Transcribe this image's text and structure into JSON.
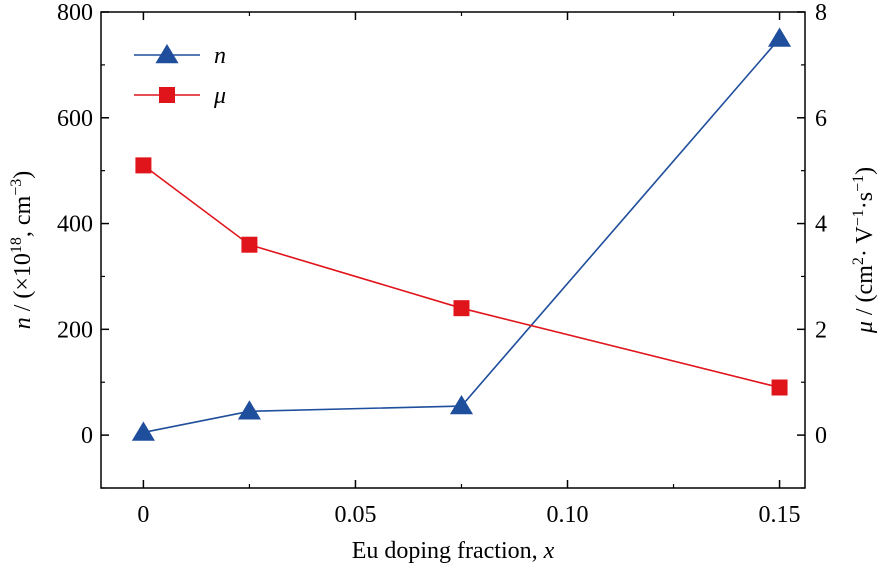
{
  "chart_data": {
    "type": "line",
    "x": [
      0,
      0.025,
      0.075,
      0.15
    ],
    "xlabel_text": "Eu doping fraction, ",
    "xlabel_var": "x",
    "xticks": [
      "0",
      "0.05",
      "0.10",
      "0.15"
    ],
    "xtick_values": [
      0,
      0.05,
      0.1,
      0.15
    ],
    "xlim": [
      -0.01,
      0.156
    ],
    "left_axis": {
      "ylim": [
        -100,
        800
      ],
      "ticks": [
        0,
        200,
        400,
        600,
        800
      ],
      "tick_labels": [
        "0",
        "200",
        "400",
        "600",
        "800"
      ],
      "label_var": "n",
      "label_rest": " / (×10",
      "label_sup1": "18",
      "label_mid": ", cm",
      "label_sup2": "−3",
      "label_end": ")"
    },
    "right_axis": {
      "ylim": [
        -1,
        8
      ],
      "ticks": [
        0,
        2,
        4,
        6,
        8
      ],
      "tick_labels": [
        "0",
        "2",
        "4",
        "6",
        "8"
      ],
      "label_var": "μ",
      "label_rest": " / (cm",
      "label_sup1": "2",
      "label_mid1": "· V",
      "label_sup2": "−1",
      "label_mid2": "·s",
      "label_sup3": "−1",
      "label_end": ")"
    },
    "series": [
      {
        "name": "n",
        "axis": "left",
        "marker": "triangle",
        "color": "#1f4e9c",
        "values": [
          5,
          45,
          55,
          750
        ]
      },
      {
        "name": "μ",
        "axis": "right",
        "marker": "square",
        "color": "#e0151b",
        "values": [
          5.1,
          3.6,
          2.4,
          0.9
        ]
      }
    ],
    "legend_position": "top-left",
    "grid": false
  }
}
